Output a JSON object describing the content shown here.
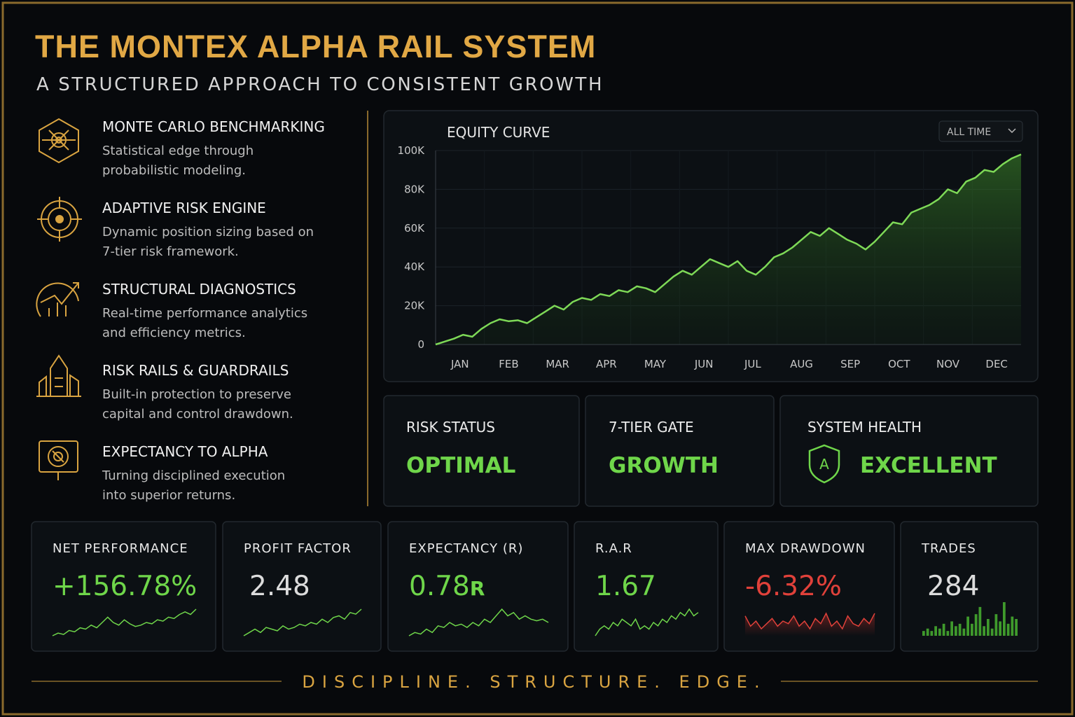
{
  "header": {
    "title": "THE MONTEX ALPHA RAIL SYSTEM",
    "subtitle": "A STRUCTURED APPROACH TO CONSISTENT GROWTH"
  },
  "features": [
    {
      "title": "MONTE CARLO BENCHMARKING",
      "description_lines": [
        "Statistical edge through",
        "probabilistic modeling."
      ]
    },
    {
      "title": "ADAPTIVE RISK ENGINE",
      "description_lines": [
        "Dynamic position sizing based on",
        "7-tier risk framework."
      ]
    },
    {
      "title": "STRUCTURAL DIAGNOSTICS",
      "description_lines": [
        "Real-time performance analytics",
        "and efficiency metrics."
      ]
    },
    {
      "title": "RISK RAILS & GUARDRAILS",
      "description_lines": [
        "Built-in protection to preserve",
        "capital and control drawdown."
      ]
    },
    {
      "title": "EXPECTANCY TO ALPHA",
      "description_lines": [
        "Turning disciplined execution",
        "into superior returns."
      ]
    }
  ],
  "equity_chart": {
    "type": "line",
    "title": "EQUITY CURVE",
    "range_selector": "ALL TIME",
    "months": [
      "JAN",
      "FEB",
      "MAR",
      "APR",
      "MAY",
      "JUN",
      "JUL",
      "AUG",
      "SEP",
      "OCT",
      "NOV",
      "DEC"
    ],
    "values": [
      0,
      1500,
      3000,
      5000,
      4000,
      8000,
      11000,
      13000,
      12000,
      12500,
      11000,
      14000,
      17000,
      20000,
      18000,
      22000,
      24000,
      23000,
      26000,
      25000,
      28000,
      27000,
      30000,
      29000,
      27000,
      31000,
      35000,
      38000,
      36000,
      40000,
      44000,
      42000,
      40000,
      43000,
      38000,
      36000,
      40000,
      45000,
      47000,
      50000,
      54000,
      58000,
      56000,
      60000,
      57000,
      54000,
      52000,
      49000,
      53000,
      58000,
      63000,
      62000,
      68000,
      70000,
      72000,
      75000,
      80000,
      78000,
      84000,
      86000,
      90000,
      89000,
      93000,
      96000,
      98000
    ],
    "ylim": [
      0,
      100000
    ],
    "yticks": [
      0,
      {
        "value": 20000,
        "label": "20K"
      },
      {
        "value": 40000,
        "label": "40K"
      },
      {
        "value": 60000,
        "label": "60K"
      },
      {
        "value": 80000,
        "label": "80K"
      },
      {
        "value": 100000,
        "label": "100K"
      }
    ],
    "color": "#7ed957",
    "grid": true
  },
  "status_cards": [
    {
      "label": "RISK STATUS",
      "value": "OPTIMAL"
    },
    {
      "label": "7-TIER GATE",
      "value": "GROWTH"
    },
    {
      "label": "SYSTEM HEALTH",
      "value": "EXCELLENT",
      "badge": "A"
    }
  ],
  "metrics": [
    {
      "label": "NET PERFORMANCE",
      "value": "+156.78%",
      "color": "#6fd64a",
      "sparkline": [
        2,
        3,
        2.5,
        4,
        3.5,
        5,
        4.5,
        6,
        5,
        7,
        9,
        7,
        6,
        8,
        6.5,
        5.5,
        6,
        7,
        6.5,
        8,
        7.5,
        9,
        8.5,
        10,
        11,
        10,
        12
      ]
    },
    {
      "label": "PROFIT FACTOR",
      "value": "2.48",
      "color": "#dcdcdc",
      "sparkline": [
        1,
        2,
        3,
        2,
        3.5,
        3,
        2.5,
        4,
        3,
        3.5,
        4.5,
        4,
        5,
        4.5,
        6,
        5,
        6.5,
        7,
        6,
        8,
        7.5,
        9
      ]
    },
    {
      "label": "EXPECTANCY (R)",
      "value": "0.78",
      "unit": "R",
      "color": "#6fd64a",
      "sparkline": [
        2,
        3,
        2.5,
        4,
        3,
        5,
        4.5,
        6,
        5,
        5.5,
        4.5,
        6,
        5,
        7,
        6,
        8,
        10,
        8,
        9,
        7,
        8,
        7,
        6.5,
        7,
        6
      ]
    },
    {
      "label": "R.A.R",
      "value": "1.67",
      "color": "#6fd64a",
      "sparkline": [
        2,
        4,
        5,
        4,
        6,
        5,
        7,
        6,
        5,
        7,
        4,
        5,
        4,
        6,
        5,
        7,
        6,
        8,
        7,
        9,
        8,
        10,
        8,
        9
      ]
    },
    {
      "label": "MAX DRAWDOWN",
      "value": "-6.32%",
      "color": "#e0413a",
      "sparkline": [
        8,
        4,
        6,
        3,
        5,
        7,
        4,
        6,
        5,
        8,
        4,
        6,
        3,
        7,
        5,
        9,
        4,
        6,
        3,
        8,
        5,
        4,
        7,
        5,
        9
      ]
    },
    {
      "label": "TRADES",
      "value": "284",
      "color": "#dcdcdc",
      "bars": [
        2,
        3,
        2,
        4,
        3,
        5,
        2,
        6,
        4,
        5,
        3,
        8,
        5,
        9,
        12,
        4,
        7,
        3,
        9,
        6,
        14,
        5,
        8,
        7
      ]
    }
  ],
  "footer": "DISCIPLINE. STRUCTURE. EDGE."
}
